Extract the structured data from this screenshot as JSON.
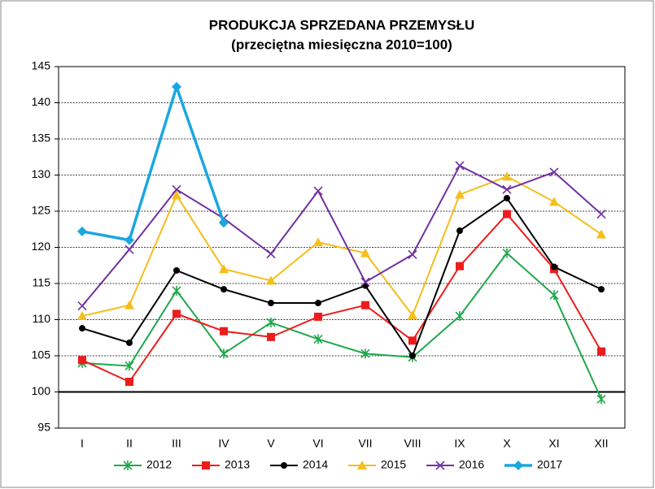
{
  "chart_data": {
    "type": "line",
    "title": "PRODUKCJA SPRZEDANA PRZEMYSŁU",
    "subtitle": "(przeciętna miesięczna 2010=100)",
    "categories": [
      "I",
      "II",
      "III",
      "IV",
      "V",
      "VI",
      "VII",
      "VIII",
      "IX",
      "X",
      "XI",
      "XII"
    ],
    "series": [
      {
        "name": "2012",
        "color": "#1fa84c",
        "marker": "star",
        "values": [
          104.0,
          103.6,
          114.0,
          105.3,
          109.6,
          107.3,
          105.3,
          104.8,
          110.5,
          119.2,
          113.4,
          99.0
        ]
      },
      {
        "name": "2013",
        "color": "#ee1c1c",
        "marker": "square",
        "values": [
          104.4,
          101.4,
          110.8,
          108.4,
          107.6,
          110.4,
          112.0,
          107.1,
          117.4,
          124.6,
          117.0,
          105.6
        ]
      },
      {
        "name": "2014",
        "color": "#000000",
        "marker": "circle",
        "values": [
          108.8,
          106.8,
          116.8,
          114.2,
          112.3,
          112.3,
          114.7,
          105.0,
          122.3,
          126.8,
          117.3,
          114.2
        ]
      },
      {
        "name": "2015",
        "color": "#f5be1b",
        "marker": "triangle",
        "values": [
          110.5,
          112.0,
          127.2,
          117.0,
          115.4,
          120.7,
          119.2,
          110.6,
          127.3,
          129.8,
          126.3,
          121.8
        ]
      },
      {
        "name": "2016",
        "color": "#7030a0",
        "marker": "x",
        "values": [
          111.9,
          119.7,
          128.0,
          124.0,
          119.1,
          127.8,
          115.2,
          119.0,
          131.3,
          128.0,
          130.4,
          124.6
        ]
      },
      {
        "name": "2017",
        "color": "#1aa7e0",
        "marker": "diamond",
        "values": [
          122.2,
          121.0,
          142.2,
          123.4,
          null,
          null,
          null,
          null,
          null,
          null,
          null,
          null
        ]
      }
    ],
    "ylim": [
      95,
      145
    ],
    "yticks": [
      95,
      100,
      105,
      110,
      115,
      120,
      125,
      130,
      135,
      140,
      145
    ],
    "grid": true,
    "reference_line": 100,
    "legend": "bottom"
  }
}
